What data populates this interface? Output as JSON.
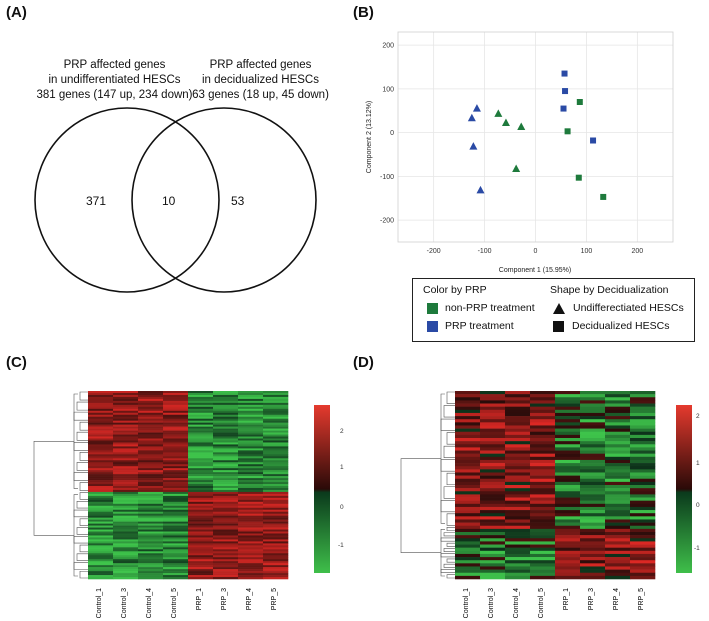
{
  "panels": {
    "a": "(A)",
    "b": "(B)",
    "c": "(C)",
    "d": "(D)"
  },
  "venn": {
    "left_title": "PRP affected genes",
    "left_subtitle": "in undifferentiated HESCs",
    "left_summary": "381 genes (147 up, 234 down)",
    "right_title": "PRP affected genes",
    "right_subtitle": "in decidualized HESCs",
    "right_summary": "63 genes (18 up, 45 down)",
    "left_only": "371",
    "overlap": "10",
    "right_only": "53"
  },
  "pca": {
    "xlabel": "Component 1 (15.95%)",
    "ylabel": "Component 2 (13.12%)",
    "xticks": [
      "-200",
      "-100",
      "0",
      "100",
      "200"
    ],
    "yticks": [
      "200",
      "100",
      "0",
      "-100",
      "-200"
    ]
  },
  "legend": {
    "color_title": "Color by PRP",
    "color_nonprp": "non-PRP treatment",
    "color_prp": "PRP treatment",
    "shape_title": "Shape by Decidualization",
    "shape_undiff": "Undifferectiated HESCs",
    "shape_decid": "Decidualized HESCs"
  },
  "heatmap_c": {
    "samples": [
      "Control_1",
      "Control_3",
      "Control_4",
      "Control_5",
      "PRP_1",
      "PRP_3",
      "PRP_4",
      "PRP_5"
    ],
    "colorbar_ticks": [
      "2",
      "1",
      "0",
      "-1"
    ]
  },
  "heatmap_d": {
    "samples": [
      "Control_1",
      "Control_3",
      "Control_4",
      "Control_5",
      "PRP_1",
      "PRP_3",
      "PRP_4",
      "PRP_5"
    ],
    "colorbar_ticks": [
      "2",
      "1",
      "0",
      "-1"
    ]
  },
  "colors": {
    "green": "#1e7a3c",
    "blue": "#2a4aa5",
    "red": "#d42a2a"
  },
  "chart_data": [
    {
      "type": "scatter",
      "title": "",
      "xlabel": "Component 1 (15.95%)",
      "ylabel": "Component 2 (13.12%)",
      "xlim": [
        -270,
        270
      ],
      "ylim": [
        -250,
        230
      ],
      "series": [
        {
          "name": "non-PRP treatment / Undifferectiated HESCs",
          "color": "#1e7a3c",
          "marker": "triangle",
          "x": [
            -73,
            -58,
            -28,
            -38
          ],
          "y": [
            43,
            22,
            13,
            -83
          ]
        },
        {
          "name": "PRP treatment / Undifferectiated HESCs",
          "color": "#2a4aa5",
          "marker": "triangle",
          "x": [
            -115,
            -125,
            -122,
            -108
          ],
          "y": [
            55,
            33,
            -32,
            -132
          ]
        },
        {
          "name": "non-PRP treatment / Decidualized HESCs",
          "color": "#1e7a3c",
          "marker": "square",
          "x": [
            87,
            63,
            85,
            133
          ],
          "y": [
            70,
            3,
            -103,
            -147
          ]
        },
        {
          "name": "PRP treatment / Decidualized HESCs",
          "color": "#2a4aa5",
          "marker": "square",
          "x": [
            57,
            58,
            55,
            113
          ],
          "y": [
            135,
            95,
            55,
            -18
          ]
        }
      ]
    }
  ]
}
